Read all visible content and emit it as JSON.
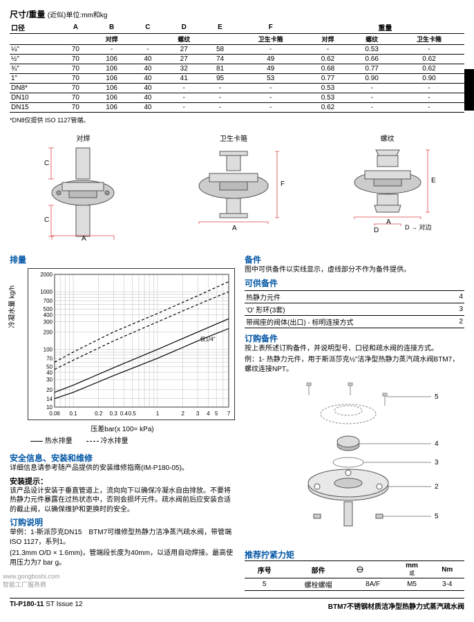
{
  "title": "尺寸/重量",
  "title_unit": "(近似)单位:mm和kg",
  "dim_head_top": [
    "口径",
    "A",
    "B",
    "C",
    "D",
    "E",
    "F",
    "",
    "重量",
    ""
  ],
  "dim_head_sub": [
    "",
    "",
    "对焊",
    "",
    "螺纹",
    "",
    "卫生卡箍",
    "对焊",
    "螺纹",
    "卫生卡箍"
  ],
  "dim_rows": [
    [
      "¼\"",
      "70",
      "-",
      "-",
      "27",
      "58",
      "-",
      "-",
      "0.53",
      "-"
    ],
    [
      "½\"",
      "70",
      "106",
      "40",
      "27",
      "74",
      "49",
      "0.62",
      "0.66",
      "0.62"
    ],
    [
      "¾\"",
      "70",
      "106",
      "40",
      "32",
      "81",
      "49",
      "0.68",
      "0.77",
      "0.62"
    ],
    [
      "1\"",
      "70",
      "106",
      "40",
      "41",
      "95",
      "53",
      "0.77",
      "0.90",
      "0.90"
    ],
    [
      "DN8*",
      "70",
      "106",
      "40",
      "-",
      "-",
      "-",
      "0.53",
      "-",
      "-"
    ],
    [
      "DN10",
      "70",
      "106",
      "40",
      "-",
      "-",
      "-",
      "0.53",
      "-",
      "-"
    ],
    [
      "DN15",
      "70",
      "106",
      "40",
      "-",
      "-",
      "-",
      "0.62",
      "-",
      "-"
    ]
  ],
  "dim_footnote": "*DN8仅提供 ISO 1127管端。",
  "diag_labels": [
    "对焊",
    "卫生卡箍",
    "螺纹"
  ],
  "diag_d_note": "D → 对边",
  "spare_title": "备件",
  "spare_intro": "图中可供备件以实线显示，虚线部分不作为备件提供。",
  "spare_avail_title": "可供备件",
  "spare_avail": [
    [
      "热静力元件",
      "4"
    ],
    [
      "'O' 形环(3套)",
      "3"
    ],
    [
      "带阀座的阀体(出口) - 标明连接方式",
      "2"
    ]
  ],
  "order_spare_title": "订购备件",
  "order_spare_text1": "按上表所述订购备件，并说明型号、口径和疏水阀的连接方式。",
  "order_spare_text2": "例：1- 热静力元件，用于斯派莎克½\"洁净型热静力蒸汽疏水阀BTM7，螺纹连接NPT。",
  "disp_title": "排量",
  "chart_ylabel": "冷凝水量 kg/h",
  "chart_xlabel": "压差bar(x 100= kPa)",
  "chart_legend": [
    "热水排量",
    "冷水排量"
  ],
  "chart_xticks": [
    "0.06",
    "0.1",
    "0.2",
    "0.3",
    "0.4",
    "0.5",
    "",
    "1",
    "2",
    "3",
    "4",
    "5",
    "7"
  ],
  "chart_yticks": [
    "10",
    "14",
    "20",
    "30",
    "40",
    "50",
    "70",
    "100",
    "200",
    "300",
    "400",
    "500",
    "700",
    "1000",
    "2000"
  ],
  "chart_series_label": "仅1/4\"",
  "safety_title": "安全信息、安装和维修",
  "safety_text": "详细信息请参考随产品提供的安装维修指南(IM-P180-05)。",
  "install_title": "安装提示：",
  "install_text": "该产品设计安装于垂直管道上，流向向下以确保冷凝水自由排放。不要将热静力元件暴露在过热状态中，否则会损坏元件。疏水阀前后应安装合适的截止阀，以确保维护和更换时的安全。",
  "order_title": "订购说明",
  "order_text1": "举例：1-斯派莎克DN15　BTM7可维修型热静力洁净蒸汽疏水阀，带管端ISO 1127，系列1。",
  "order_text2": "(21.3mm O/D × 1.6mm)，管端段长度为40mm，以适用自动焊接。最高使用压力为7 bar g。",
  "torque_title": "推荐拧紧力矩",
  "torque_head": [
    "序号",
    "部件",
    "",
    "mm",
    "Nm"
  ],
  "torque_sub": "或",
  "torque_row": [
    "5",
    "螺栓螺帽",
    "8A/F",
    "M5",
    "3-4"
  ],
  "doc_ref": "TI-P180-11",
  "doc_issue": "ST Issue 12",
  "product_name": "BTM7不锈钢材质洁净型热静力式蒸汽疏水阀",
  "wm1": "www.gongboshi.com",
  "wm2": "智能工厂服务商",
  "colors": {
    "blue": "#0055a5",
    "line": "#444444",
    "grid": "#888888"
  }
}
